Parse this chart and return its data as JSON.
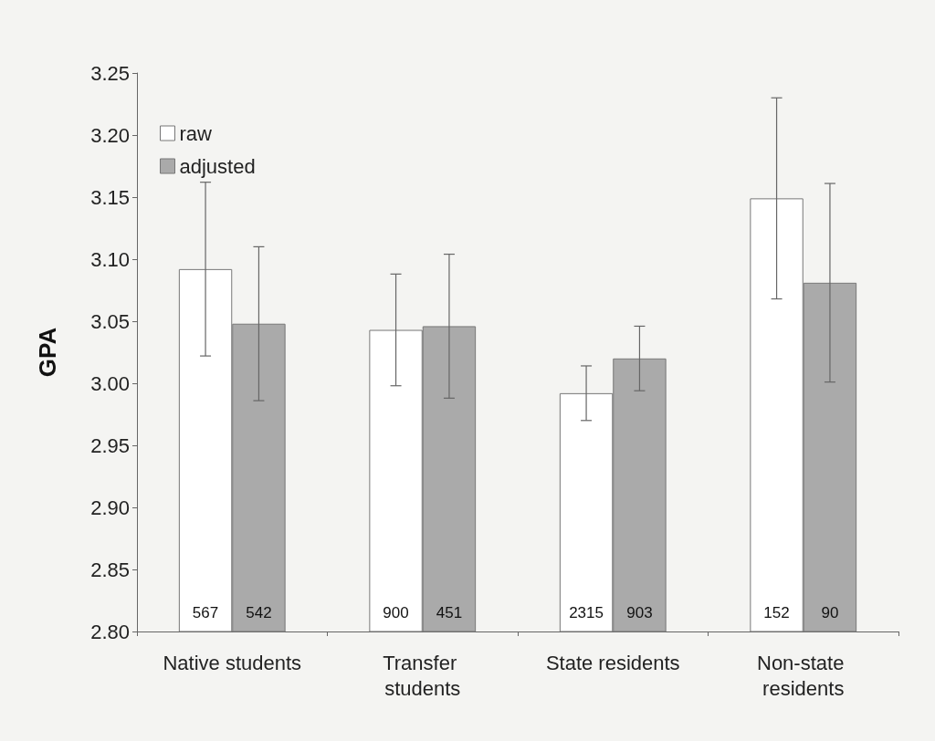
{
  "chart_data": {
    "type": "bar",
    "ylabel": "GPA",
    "categories": [
      "Native students",
      "Transfer students",
      "State residents",
      "Non-state residents"
    ],
    "series": [
      {
        "name": "raw",
        "color": "#ffffff",
        "values": [
          3.092,
          3.043,
          2.992,
          3.149
        ],
        "errors": [
          0.07,
          0.045,
          0.022,
          0.081
        ]
      },
      {
        "name": "adjusted",
        "color": "#aaaaaa",
        "values": [
          3.048,
          3.046,
          3.02,
          3.081
        ],
        "errors": [
          0.062,
          0.058,
          0.026,
          0.08
        ]
      }
    ],
    "annotations": [
      {
        "text": "567",
        "x": "Native students",
        "y": 2.8
      },
      {
        "text": "542",
        "x": "Native students",
        "y": 2.8
      },
      {
        "text": "900",
        "x": "Transfer students",
        "y": 2.8
      },
      {
        "text": "451",
        "x": "Transfer students",
        "y": 2.8
      },
      {
        "text": "2315",
        "x": "State residents",
        "y": 2.8
      },
      {
        "text": "903",
        "x": "State residents",
        "y": 2.8
      },
      {
        "text": "152",
        "x": "Non-state residents",
        "y": 2.8
      },
      {
        "text": "90",
        "x": "Non-state residents",
        "y": 2.8
      }
    ],
    "ylim": [
      2.8,
      3.25
    ],
    "yticks": [
      {
        "value": 2.8,
        "label": "2.80"
      },
      {
        "value": 2.85,
        "label": "2.85"
      },
      {
        "value": 2.9,
        "label": "2.90"
      },
      {
        "value": 2.95,
        "label": "2.95"
      },
      {
        "value": 3.0,
        "label": "3.00"
      },
      {
        "value": 3.05,
        "label": "3.05"
      },
      {
        "value": 3.1,
        "label": "3.10"
      },
      {
        "value": 3.15,
        "label": "3.15"
      },
      {
        "value": 3.2,
        "label": "3.20"
      },
      {
        "value": 3.25,
        "label": "3.25"
      }
    ],
    "grid": false,
    "legend": "top left"
  }
}
